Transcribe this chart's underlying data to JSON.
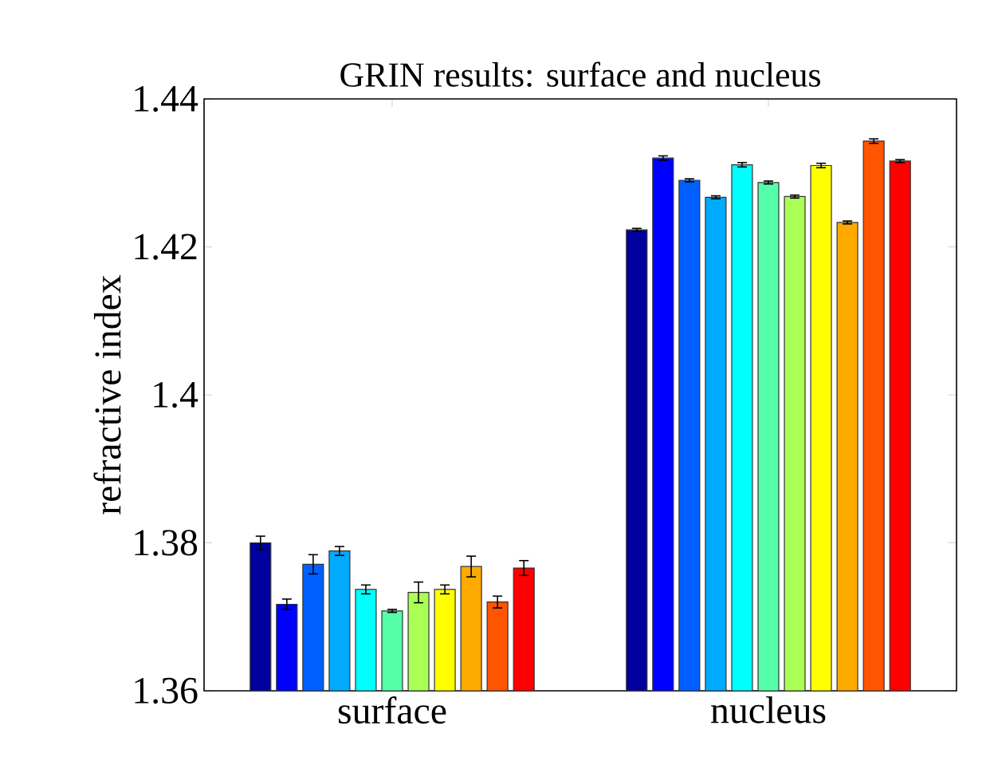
{
  "chart_data": {
    "type": "bar",
    "title": "GRIN results: surface and nucleus",
    "ylabel": "refractive index",
    "categories": [
      "surface",
      "nucleus"
    ],
    "ylim": [
      1.36,
      1.44
    ],
    "yticks": [
      1.36,
      1.38,
      1.4,
      1.42,
      1.44
    ],
    "series": [
      {
        "color": "#00009f",
        "values": [
          1.38,
          1.4223
        ],
        "errors": [
          0.0009,
          0.0002
        ]
      },
      {
        "color": "#0000ff",
        "values": [
          1.3717,
          1.432
        ],
        "errors": [
          0.0007,
          0.0003
        ]
      },
      {
        "color": "#0060ff",
        "values": [
          1.3771,
          1.429
        ],
        "errors": [
          0.0013,
          0.0002
        ]
      },
      {
        "color": "#00aaff",
        "values": [
          1.3789,
          1.4267
        ],
        "errors": [
          0.0006,
          0.0002
        ]
      },
      {
        "color": "#00ffff",
        "values": [
          1.3737,
          1.4311
        ],
        "errors": [
          0.0006,
          0.0003
        ]
      },
      {
        "color": "#55ffaa",
        "values": [
          1.3708,
          1.4287
        ],
        "errors": [
          0.0002,
          0.0002
        ]
      },
      {
        "color": "#aaff55",
        "values": [
          1.3733,
          1.4268
        ],
        "errors": [
          0.0014,
          0.0002
        ]
      },
      {
        "color": "#ffff00",
        "values": [
          1.3737,
          1.431
        ],
        "errors": [
          0.0006,
          0.0003
        ]
      },
      {
        "color": "#ffaa00",
        "values": [
          1.3768,
          1.4233
        ],
        "errors": [
          0.0014,
          0.0002
        ]
      },
      {
        "color": "#ff5500",
        "values": [
          1.372,
          1.4343
        ],
        "errors": [
          0.0008,
          0.0003
        ]
      },
      {
        "color": "#ff0000",
        "values": [
          1.3766,
          1.4316
        ],
        "errors": [
          0.001,
          0.0002
        ]
      }
    ]
  }
}
